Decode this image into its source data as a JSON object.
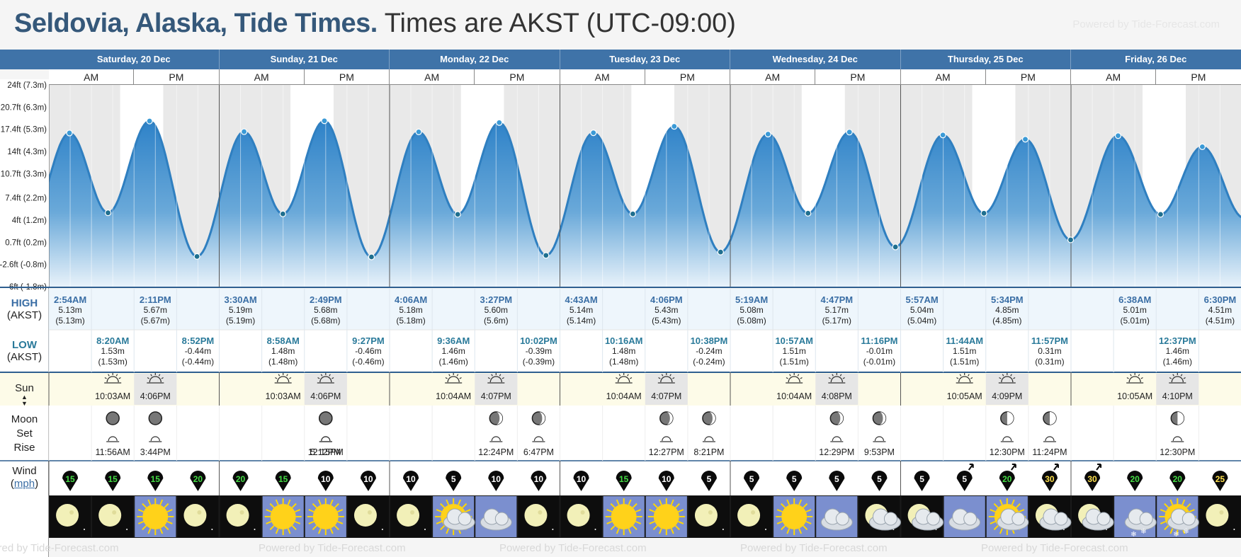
{
  "header": {
    "title_bold": "Seldovia, Alaska, Tide Times.",
    "title_rest": "Times are AKST (UTC-09:00)",
    "powered_by": "Powered by Tide-Forecast.com"
  },
  "days": [
    "Saturday, 20 Dec",
    "Sunday, 21 Dec",
    "Monday, 22 Dec",
    "Tuesday, 23 Dec",
    "Wednesday, 24 Dec",
    "Thursday, 25 Dec",
    "Friday, 26 Dec"
  ],
  "ampm": [
    "AM",
    "PM"
  ],
  "y_axis_labels": [
    "24ft (7.3m)",
    "20.7ft (6.3m)",
    "17.4ft (5.3m)",
    "14ft (4.3m)",
    "10.7ft (3.3m)",
    "7.4ft (2.2m)",
    "4ft (1.2m)",
    "0.7ft (0.2m)",
    "-2.6ft (-0.8m)",
    "-6ft (-1.8m)"
  ],
  "row_labels": {
    "high": "HIGH",
    "high_tz": "(AKST)",
    "low": "LOW",
    "low_tz": "(AKST)",
    "sun": "Sun",
    "moon": "Moon",
    "set": "Set",
    "rise": "Rise",
    "wind": "Wind",
    "wind_unit": "mph"
  },
  "chart_data": {
    "type": "area",
    "title": "",
    "xlabel": "",
    "ylabel": "",
    "units": "m",
    "ylim": [
      -1.8,
      7.3
    ],
    "extremes": [
      {
        "day": 0,
        "time": "2:54AM",
        "type": "high",
        "m": 5.13
      },
      {
        "day": 0,
        "time": "8:20AM",
        "type": "low",
        "m": 1.53
      },
      {
        "day": 0,
        "time": "2:11PM",
        "type": "high",
        "m": 5.67
      },
      {
        "day": 0,
        "time": "8:52PM",
        "type": "low",
        "m": -0.44
      },
      {
        "day": 1,
        "time": "3:30AM",
        "type": "high",
        "m": 5.19
      },
      {
        "day": 1,
        "time": "8:58AM",
        "type": "low",
        "m": 1.48
      },
      {
        "day": 1,
        "time": "2:49PM",
        "type": "high",
        "m": 5.68
      },
      {
        "day": 1,
        "time": "9:27PM",
        "type": "low",
        "m": -0.46
      },
      {
        "day": 2,
        "time": "4:06AM",
        "type": "high",
        "m": 5.18
      },
      {
        "day": 2,
        "time": "9:36AM",
        "type": "low",
        "m": 1.46
      },
      {
        "day": 2,
        "time": "3:27PM",
        "type": "high",
        "m": 5.6
      },
      {
        "day": 2,
        "time": "10:02PM",
        "type": "low",
        "m": -0.39
      },
      {
        "day": 3,
        "time": "4:43AM",
        "type": "high",
        "m": 5.14
      },
      {
        "day": 3,
        "time": "10:16AM",
        "type": "low",
        "m": 1.48
      },
      {
        "day": 3,
        "time": "4:06PM",
        "type": "high",
        "m": 5.43
      },
      {
        "day": 3,
        "time": "10:38PM",
        "type": "low",
        "m": -0.24
      },
      {
        "day": 4,
        "time": "5:19AM",
        "type": "high",
        "m": 5.08
      },
      {
        "day": 4,
        "time": "10:57AM",
        "type": "low",
        "m": 1.51
      },
      {
        "day": 4,
        "time": "4:47PM",
        "type": "high",
        "m": 5.17
      },
      {
        "day": 4,
        "time": "11:16PM",
        "type": "low",
        "m": -0.01
      },
      {
        "day": 5,
        "time": "5:57AM",
        "type": "high",
        "m": 5.04
      },
      {
        "day": 5,
        "time": "11:44AM",
        "type": "low",
        "m": 1.51
      },
      {
        "day": 5,
        "time": "5:34PM",
        "type": "high",
        "m": 4.85
      },
      {
        "day": 5,
        "time": "11:57PM",
        "type": "low",
        "m": 0.31
      },
      {
        "day": 6,
        "time": "6:38AM",
        "type": "high",
        "m": 5.01
      },
      {
        "day": 6,
        "time": "12:37PM",
        "type": "low",
        "m": 1.46
      },
      {
        "day": 6,
        "time": "6:30PM",
        "type": "high",
        "m": 4.51
      }
    ]
  },
  "highs": [
    {
      "day": 0,
      "time": "2:54AM",
      "m": "5.13m",
      "m2": "(5.13m)"
    },
    {
      "day": 0,
      "time": "2:11PM",
      "m": "5.67m",
      "m2": "(5.67m)"
    },
    {
      "day": 1,
      "time": "3:30AM",
      "m": "5.19m",
      "m2": "(5.19m)"
    },
    {
      "day": 1,
      "time": "2:49PM",
      "m": "5.68m",
      "m2": "(5.68m)"
    },
    {
      "day": 2,
      "time": "4:06AM",
      "m": "5.18m",
      "m2": "(5.18m)"
    },
    {
      "day": 2,
      "time": "3:27PM",
      "m": "5.60m",
      "m2": "(5.6m)"
    },
    {
      "day": 3,
      "time": "4:43AM",
      "m": "5.14m",
      "m2": "(5.14m)"
    },
    {
      "day": 3,
      "time": "4:06PM",
      "m": "5.43m",
      "m2": "(5.43m)"
    },
    {
      "day": 4,
      "time": "5:19AM",
      "m": "5.08m",
      "m2": "(5.08m)"
    },
    {
      "day": 4,
      "time": "4:47PM",
      "m": "5.17m",
      "m2": "(5.17m)"
    },
    {
      "day": 5,
      "time": "5:57AM",
      "m": "5.04m",
      "m2": "(5.04m)"
    },
    {
      "day": 5,
      "time": "5:34PM",
      "m": "4.85m",
      "m2": "(4.85m)"
    },
    {
      "day": 6,
      "time": "6:38AM",
      "m": "5.01m",
      "m2": "(5.01m)"
    },
    {
      "day": 6,
      "time": "6:30PM",
      "m": "4.51m",
      "m2": "(4.51m)"
    }
  ],
  "lows": [
    {
      "day": 0,
      "time": "8:20AM",
      "m": "1.53m",
      "m2": "(1.53m)"
    },
    {
      "day": 0,
      "time": "8:52PM",
      "m": "-0.44m",
      "m2": "(-0.44m)"
    },
    {
      "day": 1,
      "time": "8:58AM",
      "m": "1.48m",
      "m2": "(1.48m)"
    },
    {
      "day": 1,
      "time": "9:27PM",
      "m": "-0.46m",
      "m2": "(-0.46m)"
    },
    {
      "day": 2,
      "time": "9:36AM",
      "m": "1.46m",
      "m2": "(1.46m)"
    },
    {
      "day": 2,
      "time": "10:02PM",
      "m": "-0.39m",
      "m2": "(-0.39m)"
    },
    {
      "day": 3,
      "time": "10:16AM",
      "m": "1.48m",
      "m2": "(1.48m)"
    },
    {
      "day": 3,
      "time": "10:38PM",
      "m": "-0.24m",
      "m2": "(-0.24m)"
    },
    {
      "day": 4,
      "time": "10:57AM",
      "m": "1.51m",
      "m2": "(1.51m)"
    },
    {
      "day": 4,
      "time": "11:16PM",
      "m": "-0.01m",
      "m2": "(-0.01m)"
    },
    {
      "day": 5,
      "time": "11:44AM",
      "m": "1.51m",
      "m2": "(1.51m)"
    },
    {
      "day": 5,
      "time": "11:57PM",
      "m": "0.31m",
      "m2": "(0.31m)"
    },
    {
      "day": 6,
      "time": "12:37PM",
      "m": "1.46m",
      "m2": "(1.46m)"
    }
  ],
  "sun": [
    {
      "day": 0,
      "rise": "10:03AM",
      "set": "4:06PM"
    },
    {
      "day": 1,
      "rise": "10:03AM",
      "set": "4:06PM"
    },
    {
      "day": 2,
      "rise": "10:04AM",
      "set": "4:07PM"
    },
    {
      "day": 3,
      "rise": "10:04AM",
      "set": "4:07PM"
    },
    {
      "day": 4,
      "rise": "10:04AM",
      "set": "4:08PM"
    },
    {
      "day": 5,
      "rise": "10:05AM",
      "set": "4:09PM"
    },
    {
      "day": 6,
      "rise": "10:05AM",
      "set": "4:10PM"
    }
  ],
  "moon": [
    {
      "time": "11:56AM",
      "event": "set",
      "phase": "waning-crescent"
    },
    {
      "time": "3:44PM",
      "event": "rise",
      "phase": "waning-crescent"
    },
    {
      "time": "5:12PM",
      "event": "rise",
      "phase": "new-moon"
    },
    {
      "time": "12:15PM",
      "event": "set",
      "phase": "new-moon"
    },
    {
      "time": "12:24PM",
      "event": "set",
      "phase": "waxing-crescent"
    },
    {
      "time": "6:47PM",
      "event": "rise",
      "phase": "waxing-crescent"
    },
    {
      "time": "12:27PM",
      "event": "set",
      "phase": "waxing-crescent"
    },
    {
      "time": "8:21PM",
      "event": "rise",
      "phase": "waxing-crescent"
    },
    {
      "time": "12:29PM",
      "event": "set",
      "phase": "waxing-crescent"
    },
    {
      "time": "9:53PM",
      "event": "rise",
      "phase": "waxing-crescent"
    },
    {
      "time": "12:30PM",
      "event": "set",
      "phase": "first-quarter"
    },
    {
      "time": "11:24PM",
      "event": "rise",
      "phase": "first-quarter"
    },
    {
      "time": "12:30PM",
      "event": "set",
      "phase": "first-quarter"
    }
  ],
  "wind": [
    15,
    15,
    15,
    20,
    20,
    15,
    10,
    10,
    10,
    5,
    10,
    10,
    10,
    15,
    10,
    5,
    5,
    5,
    5,
    5,
    5,
    5,
    20,
    30,
    30,
    20,
    20,
    25
  ],
  "wind_colors": {
    "low": "#ffffff",
    "mid": "#44dd44",
    "high": "#ffe14d"
  },
  "weather": [
    "moon-clear",
    "moon-clear",
    "sunny",
    "moon-clear",
    "moon-clear",
    "sunny",
    "sunny",
    "moon-clear",
    "moon-clear",
    "sun-cloud",
    "cloudy",
    "moon-clear",
    "moon-clear",
    "sunny",
    "sunny",
    "moon-clear",
    "moon-clear",
    "sunny",
    "cloudy",
    "moon-cloud",
    "moon-cloud",
    "cloudy",
    "sun-cloud",
    "moon-cloud",
    "moon-cloud",
    "snow-cloud",
    "snow-sun-cloud",
    "moon-clear"
  ],
  "colors": {
    "accent": "#3f73a8",
    "tide": "#3a86c6",
    "title": "#35587a",
    "high_text": "#3a6ea5",
    "low_text": "#2a7a9a"
  }
}
